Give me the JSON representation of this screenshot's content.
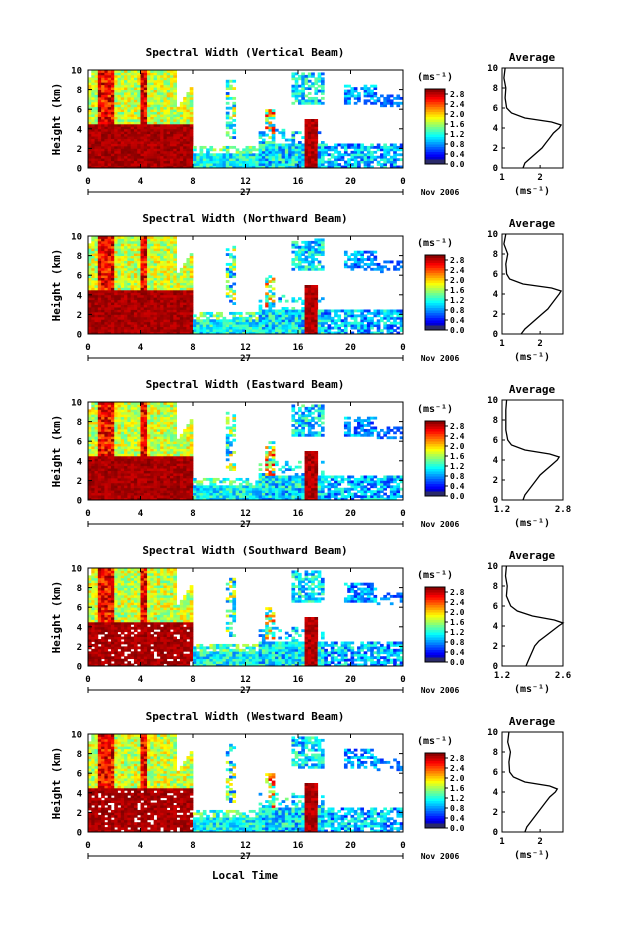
{
  "figure": {
    "xlabel": "Local Time",
    "date_label": "Nov 2006",
    "day_label": "27",
    "colorbar_unit": "(ms⁻¹)",
    "average_title": "Average",
    "average_xlabel": "(ms⁻¹)"
  },
  "chart_data": [
    {
      "type": "heatmap",
      "title": "Spectral Width (Vertical Beam)",
      "ylabel": "Height (km)",
      "x_ticks": [
        "0",
        "4",
        "8",
        "12",
        "16",
        "20",
        "0"
      ],
      "xlim": [
        0,
        24
      ],
      "y_ticks": [
        "0",
        "2",
        "4",
        "6",
        "8",
        "10"
      ],
      "ylim": [
        0,
        10
      ],
      "colorbar": {
        "ticks": [
          "0.0",
          "0.4",
          "0.8",
          "1.2",
          "1.6",
          "2.0",
          "2.4",
          "2.8"
        ],
        "range": [
          0,
          3.0
        ],
        "colormap": "jet"
      },
      "profile": {
        "title": "Average",
        "x_ticks": [
          "1",
          "2"
        ],
        "xlim": [
          1.0,
          2.6
        ],
        "y_ticks": [
          "0",
          "2",
          "4",
          "6",
          "8",
          "10"
        ],
        "heights": [
          0,
          0.5,
          1,
          1.5,
          2,
          2.5,
          3,
          3.5,
          4,
          4.3,
          4.6,
          5,
          5.5,
          6,
          7,
          8,
          9,
          10
        ],
        "values": [
          1.55,
          1.6,
          1.75,
          1.9,
          2.05,
          2.15,
          2.25,
          2.35,
          2.5,
          2.55,
          2.3,
          1.6,
          1.25,
          1.12,
          1.08,
          1.1,
          1.05,
          1.08
        ]
      }
    },
    {
      "type": "heatmap",
      "title": "Spectral Width (Northward Beam)",
      "ylabel": "Height (km)",
      "x_ticks": [
        "0",
        "4",
        "8",
        "12",
        "16",
        "20",
        "0"
      ],
      "xlim": [
        0,
        24
      ],
      "y_ticks": [
        "0",
        "2",
        "4",
        "6",
        "8",
        "10"
      ],
      "ylim": [
        0,
        10
      ],
      "colorbar": {
        "ticks": [
          "0.0",
          "0.4",
          "0.8",
          "1.2",
          "1.6",
          "2.0",
          "2.4",
          "2.8"
        ],
        "range": [
          0,
          3.0
        ],
        "colormap": "jet"
      },
      "profile": {
        "title": "Average",
        "x_ticks": [
          "1",
          "2"
        ],
        "xlim": [
          1.0,
          2.6
        ],
        "y_ticks": [
          "0",
          "2",
          "4",
          "6",
          "8",
          "10"
        ],
        "heights": [
          0,
          0.5,
          1,
          1.5,
          2,
          2.5,
          3,
          3.5,
          4,
          4.3,
          4.6,
          5,
          5.5,
          6,
          7,
          8,
          9,
          10
        ],
        "values": [
          1.5,
          1.6,
          1.75,
          1.9,
          2.05,
          2.2,
          2.3,
          2.4,
          2.5,
          2.55,
          2.3,
          1.55,
          1.2,
          1.12,
          1.1,
          1.15,
          1.05,
          1.1
        ]
      }
    },
    {
      "type": "heatmap",
      "title": "Spectral Width (Eastward Beam)",
      "ylabel": "Height (km)",
      "x_ticks": [
        "0",
        "4",
        "8",
        "12",
        "16",
        "20",
        "0"
      ],
      "xlim": [
        0,
        24
      ],
      "y_ticks": [
        "0",
        "2",
        "4",
        "6",
        "8",
        "10"
      ],
      "ylim": [
        0,
        10
      ],
      "colorbar": {
        "ticks": [
          "0.0",
          "0.4",
          "0.8",
          "1.2",
          "1.6",
          "2.0",
          "2.4",
          "2.8"
        ],
        "range": [
          0,
          3.0
        ],
        "colormap": "jet"
      },
      "profile": {
        "title": "Average",
        "x_ticks": [
          "1.2",
          "2.8"
        ],
        "xlim": [
          1.2,
          2.8
        ],
        "y_ticks": [
          "0",
          "2",
          "4",
          "6",
          "8",
          "10"
        ],
        "heights": [
          0,
          0.5,
          1,
          1.5,
          2,
          2.5,
          3,
          3.5,
          4,
          4.3,
          4.6,
          5,
          5.5,
          6,
          7,
          8,
          9,
          10
        ],
        "values": [
          1.75,
          1.8,
          1.9,
          2.0,
          2.1,
          2.2,
          2.35,
          2.5,
          2.65,
          2.7,
          2.45,
          1.8,
          1.45,
          1.35,
          1.3,
          1.3,
          1.3,
          1.32
        ]
      }
    },
    {
      "type": "heatmap",
      "title": "Spectral Width (Southward Beam)",
      "ylabel": "Height (km)",
      "x_ticks": [
        "0",
        "4",
        "8",
        "12",
        "16",
        "20",
        "0"
      ],
      "xlim": [
        0,
        24
      ],
      "y_ticks": [
        "0",
        "2",
        "4",
        "6",
        "8",
        "10"
      ],
      "ylim": [
        0,
        10
      ],
      "colorbar": {
        "ticks": [
          "0.0",
          "0.4",
          "0.8",
          "1.2",
          "1.6",
          "2.0",
          "2.4",
          "2.8"
        ],
        "range": [
          0,
          3.0
        ],
        "colormap": "jet"
      },
      "profile": {
        "title": "Average",
        "x_ticks": [
          "1.2",
          "2.6"
        ],
        "xlim": [
          1.2,
          2.6
        ],
        "y_ticks": [
          "0",
          "2",
          "4",
          "6",
          "8",
          "10"
        ],
        "heights": [
          0,
          0.5,
          1,
          1.5,
          2,
          2.5,
          3,
          3.5,
          4,
          4.3,
          4.6,
          5,
          5.5,
          6,
          7,
          8,
          9,
          10
        ],
        "values": [
          1.75,
          1.8,
          1.85,
          1.9,
          1.95,
          2.05,
          2.2,
          2.35,
          2.5,
          2.6,
          2.4,
          1.9,
          1.55,
          1.4,
          1.3,
          1.32,
          1.28,
          1.3
        ]
      }
    },
    {
      "type": "heatmap",
      "title": "Spectral Width (Westward Beam)",
      "ylabel": "Height (km)",
      "x_ticks": [
        "0",
        "4",
        "8",
        "12",
        "16",
        "20",
        "0"
      ],
      "xlim": [
        0,
        24
      ],
      "y_ticks": [
        "0",
        "2",
        "4",
        "6",
        "8",
        "10"
      ],
      "ylim": [
        0,
        10
      ],
      "colorbar": {
        "ticks": [
          "0.0",
          "0.4",
          "0.8",
          "1.2",
          "1.6",
          "2.0",
          "2.4",
          "2.8"
        ],
        "range": [
          0,
          3.0
        ],
        "colormap": "jet"
      },
      "profile": {
        "title": "Average",
        "x_ticks": [
          "1",
          "2"
        ],
        "xlim": [
          1.0,
          2.6
        ],
        "y_ticks": [
          "0",
          "2",
          "4",
          "6",
          "8",
          "10"
        ],
        "heights": [
          0,
          0.5,
          1,
          1.5,
          2,
          2.5,
          3,
          3.5,
          4,
          4.3,
          4.6,
          5,
          5.5,
          6,
          7,
          8,
          9,
          10
        ],
        "values": [
          1.6,
          1.65,
          1.75,
          1.85,
          1.95,
          2.05,
          2.15,
          2.25,
          2.4,
          2.45,
          2.25,
          1.6,
          1.3,
          1.2,
          1.18,
          1.22,
          1.15,
          1.18
        ]
      }
    }
  ]
}
